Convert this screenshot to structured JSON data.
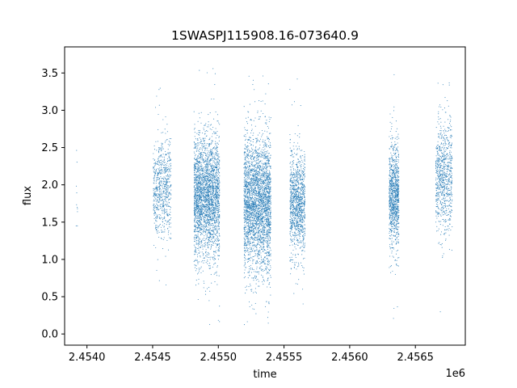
{
  "chart_data": {
    "type": "scatter",
    "title": "1SWASPJ115908.16-073640.9",
    "xlabel": "time",
    "ylabel": "flux",
    "x_offset_label": "1e6",
    "xlim": [
      2453830,
      2456880
    ],
    "ylim": [
      -0.15,
      3.85
    ],
    "x_ticks": [
      2454000,
      2454500,
      2455000,
      2455500,
      2456000,
      2456500
    ],
    "x_tick_labels": [
      "2.4540",
      "2.4545",
      "2.4550",
      "2.4555",
      "2.4560",
      "2.4565"
    ],
    "y_ticks": [
      0.0,
      0.5,
      1.0,
      1.5,
      2.0,
      2.5,
      3.0,
      3.5
    ],
    "y_tick_labels": [
      "0.0",
      "0.5",
      "1.0",
      "1.5",
      "2.0",
      "2.5",
      "3.0",
      "3.5"
    ],
    "marker_color": "#1f77b4",
    "grid": false,
    "seasons": [
      {
        "start": 2453918,
        "end": 2453928,
        "center": 2.0,
        "spread": 0.45,
        "lo": 1.45,
        "hi": 2.6,
        "count": 10
      },
      {
        "start": 2454505,
        "end": 2454640,
        "center": 1.95,
        "spread": 0.32,
        "lo": 0.62,
        "hi": 3.45,
        "count": 700
      },
      {
        "start": 2454815,
        "end": 2455010,
        "center": 1.85,
        "spread": 0.42,
        "lo": 0.12,
        "hi": 3.65,
        "count": 2600
      },
      {
        "start": 2455195,
        "end": 2455400,
        "center": 1.75,
        "spread": 0.45,
        "lo": 0.02,
        "hi": 3.65,
        "count": 2900
      },
      {
        "start": 2455545,
        "end": 2455660,
        "center": 1.75,
        "spread": 0.33,
        "lo": 0.25,
        "hi": 3.45,
        "count": 1100
      },
      {
        "start": 2456300,
        "end": 2456375,
        "center": 1.85,
        "spread": 0.35,
        "lo": 0.2,
        "hi": 3.6,
        "count": 1000
      },
      {
        "start": 2456655,
        "end": 2456780,
        "center": 2.1,
        "spread": 0.38,
        "lo": 0.08,
        "hi": 3.6,
        "count": 800
      }
    ]
  }
}
